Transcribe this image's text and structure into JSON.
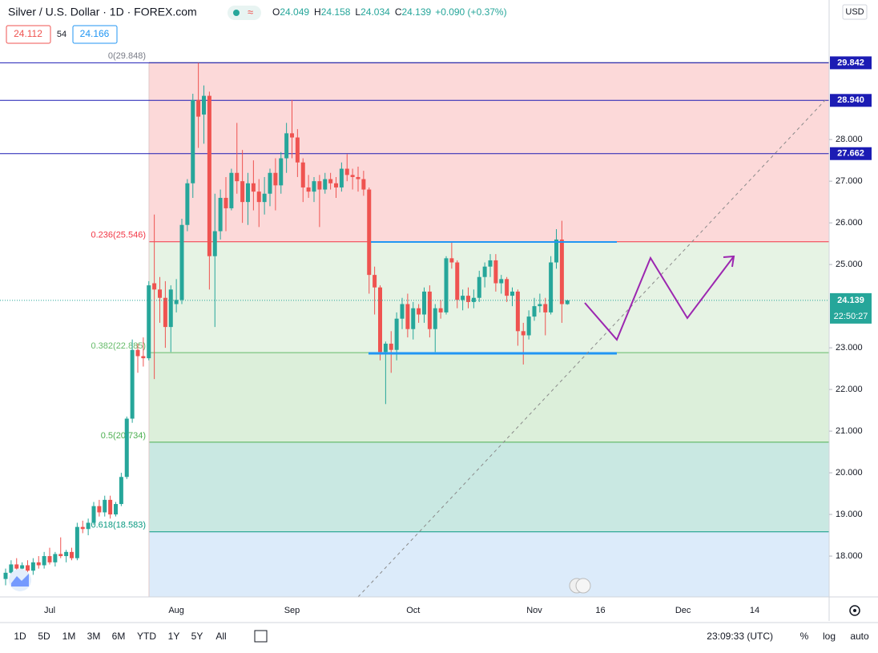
{
  "header": {
    "title": "Silver / U.S. Dollar · 1D · FOREX.com",
    "ohlc_keys": [
      "O",
      "H",
      "L",
      "C"
    ],
    "change": "+0.090 (+0.37%)",
    "bid": "24.112",
    "spread": "54",
    "ask": "24.166",
    "currency": "USD"
  },
  "toolbar": {
    "ranges": [
      "1D",
      "5D",
      "1M",
      "3M",
      "6M",
      "YTD",
      "1Y",
      "5Y",
      "All"
    ],
    "time": "23:09:33 (UTC)",
    "options": [
      "%",
      "log",
      "auto"
    ]
  },
  "chart_data": {
    "type": "candlestick",
    "up_color": "#26a69a",
    "down_color": "#ef5350",
    "categories": [
      null,
      null,
      null,
      null,
      null,
      null,
      null,
      null,
      "Jul",
      null,
      null,
      null,
      null,
      null,
      null,
      null,
      null,
      null,
      null,
      null,
      null,
      null,
      null,
      null,
      null,
      null,
      null,
      null,
      null,
      null,
      null,
      "Aug",
      null,
      null,
      null,
      null,
      null,
      null,
      null,
      null,
      null,
      null,
      null,
      null,
      null,
      null,
      null,
      null,
      null,
      null,
      null,
      null,
      "Sep",
      null,
      null,
      null,
      null,
      null,
      null,
      null,
      null,
      null,
      null,
      null,
      null,
      null,
      null,
      null,
      null,
      null,
      null,
      null,
      null,
      null,
      "Oct",
      null,
      null,
      null,
      null,
      null,
      null,
      null,
      null,
      null,
      null,
      null,
      null,
      null,
      null,
      null,
      null,
      null,
      null,
      null,
      null,
      null,
      "Nov",
      null,
      null,
      null,
      null,
      null,
      null,
      null,
      null,
      null,
      null,
      null,
      "16",
      null,
      null,
      null,
      null,
      null,
      null,
      null,
      null,
      null,
      null,
      null,
      null,
      null,
      null,
      "Dec",
      null,
      null,
      null,
      null,
      null,
      null,
      null,
      null,
      null,
      null,
      null,
      null,
      "14",
      null,
      null,
      null
    ],
    "open": [
      17.45,
      17.6,
      17.8,
      17.7,
      17.78,
      17.65,
      17.85,
      17.78,
      18.0,
      17.85,
      18.05,
      18.0,
      18.1,
      17.95,
      18.7,
      18.65,
      18.8,
      19.2,
      19.05,
      19.35,
      19.0,
      19.25,
      19.9,
      21.3,
      22.95,
      22.8,
      22.75,
      24.55,
      24.4,
      24.2,
      23.5,
      24.05,
      24.15,
      25.95,
      26.95,
      28.95,
      28.6,
      29.05,
      25.2,
      25.8,
      26.6,
      26.35,
      27.2,
      27.0,
      26.5,
      26.95,
      26.75,
      26.5,
      26.7,
      27.2,
      26.9,
      27.55,
      28.15,
      28.05,
      27.45,
      26.85,
      26.75,
      27.0,
      26.8,
      27.05,
      26.95,
      26.85,
      27.3,
      27.15,
      27.1,
      27.05,
      26.8,
      24.75,
      24.45,
      22.9,
      23.1,
      22.95,
      23.7,
      24.05,
      23.45,
      23.95,
      23.8,
      24.35,
      23.45,
      23.95,
      23.85,
      25.15,
      25.05,
      24.15,
      24.25,
      24.1,
      24.2,
      24.7,
      24.95,
      25.1,
      24.55,
      24.65,
      24.25,
      24.35,
      23.4,
      23.3,
      23.75,
      24.0,
      24.05,
      23.85,
      25.05,
      25.6,
      24.049,
      null,
      null,
      null,
      null,
      null,
      null,
      null,
      null,
      null,
      null,
      null,
      null,
      null,
      null,
      null,
      null,
      null,
      null,
      null,
      null,
      null,
      null,
      null,
      null,
      null,
      null,
      null,
      null,
      null,
      null,
      null,
      null,
      null,
      null,
      null,
      null,
      null
    ],
    "high": [
      17.7,
      17.9,
      17.95,
      17.85,
      17.9,
      17.95,
      18.0,
      18.1,
      18.2,
      18.1,
      18.45,
      18.15,
      18.2,
      18.8,
      18.85,
      18.9,
      19.3,
      19.35,
      19.45,
      19.45,
      19.3,
      20.0,
      21.35,
      23.2,
      23.1,
      23.25,
      24.6,
      26.2,
      24.7,
      24.6,
      24.5,
      24.65,
      26.1,
      27.05,
      29.1,
      29.84,
      29.3,
      29.15,
      26.7,
      26.8,
      27.1,
      27.3,
      28.4,
      27.75,
      27.2,
      27.5,
      27.05,
      27.1,
      27.3,
      27.55,
      27.7,
      28.4,
      28.95,
      28.25,
      27.55,
      27.15,
      27.1,
      27.15,
      27.2,
      27.2,
      27.1,
      27.45,
      27.65,
      27.3,
      27.35,
      27.25,
      26.85,
      24.95,
      24.5,
      23.15,
      23.4,
      23.85,
      24.2,
      24.3,
      24.1,
      24.05,
      24.45,
      24.5,
      24.05,
      24.15,
      25.2,
      25.55,
      25.1,
      24.4,
      24.45,
      24.4,
      24.85,
      25.05,
      25.25,
      25.25,
      24.75,
      24.7,
      24.45,
      24.4,
      23.6,
      23.9,
      24.2,
      24.3,
      24.2,
      25.2,
      25.85,
      26.05,
      24.158,
      null,
      null,
      null,
      null,
      null,
      null,
      null,
      null,
      null,
      null,
      null,
      null,
      null,
      null,
      null,
      null,
      null,
      null,
      null,
      null,
      null,
      null,
      null,
      null,
      null,
      null,
      null,
      null,
      null,
      null,
      null,
      null,
      null,
      null,
      null,
      null,
      null
    ],
    "low": [
      17.3,
      17.5,
      17.6,
      17.5,
      17.6,
      17.55,
      17.7,
      17.7,
      17.8,
      17.75,
      17.95,
      17.85,
      17.9,
      17.9,
      18.55,
      18.5,
      18.75,
      18.95,
      18.95,
      18.9,
      18.95,
      19.2,
      19.85,
      21.2,
      22.4,
      22.55,
      22.7,
      22.25,
      23.6,
      23.0,
      22.9,
      23.85,
      24.05,
      25.8,
      26.6,
      27.8,
      27.9,
      24.4,
      23.5,
      25.6,
      25.8,
      26.3,
      26.7,
      26.0,
      25.95,
      26.3,
      25.9,
      26.2,
      26.4,
      26.3,
      26.7,
      27.2,
      27.55,
      27.1,
      26.5,
      26.6,
      26.5,
      25.9,
      26.7,
      26.8,
      26.6,
      26.75,
      27.0,
      26.8,
      26.75,
      26.65,
      24.3,
      23.8,
      22.7,
      21.65,
      22.4,
      22.7,
      23.45,
      23.25,
      23.2,
      23.6,
      23.6,
      23.25,
      22.9,
      23.7,
      23.8,
      24.9,
      23.95,
      23.9,
      23.95,
      23.95,
      24.1,
      24.45,
      24.7,
      24.35,
      24.3,
      24.1,
      24.0,
      23.05,
      22.6,
      23.2,
      23.65,
      23.85,
      23.3,
      23.8,
      24.9,
      23.6,
      24.034,
      null,
      null,
      null,
      null,
      null,
      null,
      null,
      null,
      null,
      null,
      null,
      null,
      null,
      null,
      null,
      null,
      null,
      null,
      null,
      null,
      null,
      null,
      null,
      null,
      null,
      null,
      null,
      null,
      null,
      null,
      null,
      null,
      null,
      null,
      null,
      null,
      null
    ],
    "close": [
      17.6,
      17.8,
      17.7,
      17.78,
      17.65,
      17.85,
      17.78,
      18.0,
      17.85,
      18.05,
      18.0,
      18.1,
      17.95,
      18.7,
      18.65,
      18.8,
      19.2,
      19.05,
      19.35,
      19.0,
      19.25,
      19.9,
      21.3,
      22.95,
      22.8,
      22.75,
      24.5,
      24.4,
      24.2,
      23.5,
      24.4,
      24.15,
      25.95,
      26.95,
      28.95,
      28.55,
      29.05,
      25.2,
      25.8,
      26.6,
      26.35,
      27.2,
      27.0,
      26.5,
      26.95,
      26.75,
      26.5,
      26.7,
      27.2,
      26.9,
      27.55,
      28.15,
      28.05,
      27.45,
      26.85,
      26.75,
      27.0,
      26.8,
      27.05,
      26.95,
      26.85,
      27.3,
      27.15,
      27.1,
      27.05,
      26.8,
      24.75,
      24.45,
      22.9,
      23.1,
      22.95,
      23.7,
      24.05,
      23.45,
      23.95,
      23.8,
      24.35,
      23.45,
      23.95,
      23.85,
      25.15,
      25.05,
      24.15,
      24.25,
      24.1,
      24.2,
      24.7,
      24.95,
      25.1,
      24.55,
      24.65,
      24.25,
      24.35,
      23.4,
      23.3,
      23.75,
      24.0,
      24.05,
      23.85,
      25.05,
      25.6,
      24.05,
      24.139,
      null,
      null,
      null,
      null,
      null,
      null,
      null,
      null,
      null,
      null,
      null,
      null,
      null,
      null,
      null,
      null,
      null,
      null,
      null,
      null,
      null,
      null,
      null,
      null,
      null,
      null,
      null,
      null,
      null,
      null,
      null,
      null,
      null,
      null,
      null,
      null,
      null
    ],
    "ylim": [
      17.02,
      31.35
    ],
    "yticks": [
      {
        "value": 18,
        "label": "18.000"
      },
      {
        "value": 19,
        "label": "19.000"
      },
      {
        "value": 20,
        "label": "20.000"
      },
      {
        "value": 21,
        "label": "21.000"
      },
      {
        "value": 22,
        "label": "22.000"
      },
      {
        "value": 23,
        "label": "23.000"
      },
      {
        "value": 25,
        "label": "25.000"
      },
      {
        "value": 26,
        "label": "26.000"
      },
      {
        "value": 27,
        "label": "27.000"
      },
      {
        "value": 28,
        "label": "28.000"
      }
    ],
    "fib_levels": [
      {
        "label": "0(29.848)",
        "value": 29.848,
        "color": "#787b86",
        "fill": "#fcd9d9"
      },
      {
        "label": "0.236(25.546)",
        "value": 25.546,
        "color": "#f23645",
        "fill": "#e6f3e4"
      },
      {
        "label": "0.382(22.885)",
        "value": 22.885,
        "color": "#66bb6a",
        "fill": "#dcefda"
      },
      {
        "label": "0.5(20.734)",
        "value": 20.734,
        "color": "#4caf50",
        "fill": "#c9e8e2"
      },
      {
        "label": "0.618(18.583)",
        "value": 18.583,
        "color": "#089981",
        "fill": "#dcebfa"
      }
    ],
    "price_lines": [
      {
        "value": 29.842,
        "label": "29.842"
      },
      {
        "value": 28.94,
        "label": "28.940"
      },
      {
        "value": 27.662,
        "label": "27.662"
      }
    ],
    "price_line_color": "#1c1cb4",
    "countdown": "22:50:27"
  }
}
